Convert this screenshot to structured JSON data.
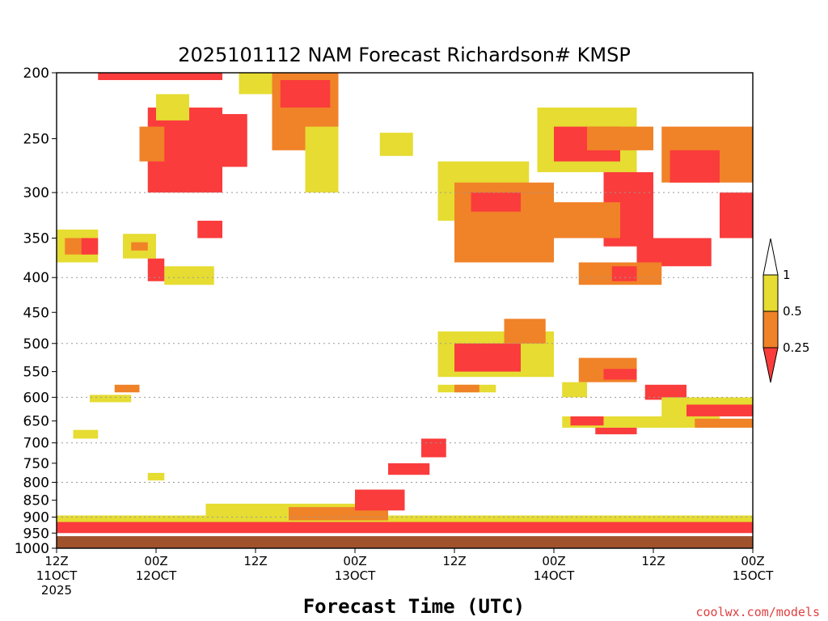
{
  "chart_data": {
    "type": "heatmap",
    "title": "2025101112 NAM Forecast Richardson# KMSP",
    "xlabel": "Forecast Time (UTC)",
    "ylabel": "",
    "credit": "coolwx.com/models",
    "y_scale": "log-pressure (inverted)",
    "ylim": [
      1000,
      200
    ],
    "xlim": [
      0,
      84
    ],
    "y_ticks": [
      200,
      250,
      300,
      350,
      400,
      450,
      500,
      550,
      600,
      650,
      700,
      750,
      800,
      850,
      900,
      950,
      1000
    ],
    "gridlines": [
      300,
      400,
      500,
      600,
      700,
      800,
      900
    ],
    "x_ticks": [
      {
        "hour": 0,
        "line1": "12Z",
        "line2": "11OCT",
        "line3": "2025"
      },
      {
        "hour": 12,
        "line1": "00Z",
        "line2": "12OCT",
        "line3": ""
      },
      {
        "hour": 24,
        "line1": "12Z",
        "line2": "",
        "line3": ""
      },
      {
        "hour": 36,
        "line1": "00Z",
        "line2": "13OCT",
        "line3": ""
      },
      {
        "hour": 48,
        "line1": "12Z",
        "line2": "",
        "line3": ""
      },
      {
        "hour": 60,
        "line1": "00Z",
        "line2": "14OCT",
        "line3": ""
      },
      {
        "hour": 72,
        "line1": "12Z",
        "line2": "",
        "line3": ""
      },
      {
        "hour": 84,
        "line1": "00Z",
        "line2": "15OCT",
        "line3": ""
      }
    ],
    "legend": {
      "position": "right",
      "levels": [
        {
          "label": "1",
          "range": "> 1",
          "color": "#ffffff"
        },
        {
          "label": "0.5",
          "range": "0.5 - 1",
          "color": "#e6dc32"
        },
        {
          "label": "0.25",
          "range": "0.25 - 0.5",
          "color": "#f08228"
        },
        {
          "label": "",
          "range": "< 0.25",
          "color": "#fa3c3c"
        }
      ]
    },
    "colors": {
      "yellow": "#e6dc32",
      "orange": "#f08228",
      "red": "#fa3c3c",
      "ground": "#a0522d"
    },
    "regions": [
      {
        "h0": 0,
        "h1": 84,
        "p0": 960,
        "p1": 1000,
        "c": "ground"
      },
      {
        "h0": 0,
        "h1": 84,
        "p0": 910,
        "p1": 950,
        "c": "red"
      },
      {
        "h0": 0,
        "h1": 84,
        "p0": 895,
        "p1": 915,
        "c": "yellow"
      },
      {
        "h0": 18,
        "h1": 40,
        "p0": 860,
        "p1": 900,
        "c": "yellow"
      },
      {
        "h0": 28,
        "h1": 40,
        "p0": 870,
        "p1": 910,
        "c": "orange"
      },
      {
        "h0": 36,
        "h1": 42,
        "p0": 820,
        "p1": 880,
        "c": "red"
      },
      {
        "h0": 44,
        "h1": 47,
        "p0": 690,
        "p1": 735,
        "c": "red"
      },
      {
        "h0": 40,
        "h1": 45,
        "p0": 750,
        "p1": 780,
        "c": "red"
      },
      {
        "h0": 5,
        "h1": 20,
        "p0": 200,
        "p1": 205,
        "c": "red"
      },
      {
        "h0": 11,
        "h1": 20,
        "p0": 225,
        "p1": 300,
        "c": "red"
      },
      {
        "h0": 10,
        "h1": 13,
        "p0": 240,
        "p1": 270,
        "c": "orange"
      },
      {
        "h0": 16,
        "h1": 23,
        "p0": 230,
        "p1": 275,
        "c": "red"
      },
      {
        "h0": 12,
        "h1": 16,
        "p0": 215,
        "p1": 235,
        "c": "yellow"
      },
      {
        "h0": 22,
        "h1": 26,
        "p0": 200,
        "p1": 215,
        "c": "yellow"
      },
      {
        "h0": 26,
        "h1": 34,
        "p0": 200,
        "p1": 260,
        "c": "orange"
      },
      {
        "h0": 27,
        "h1": 33,
        "p0": 205,
        "p1": 225,
        "c": "red"
      },
      {
        "h0": 30,
        "h1": 34,
        "p0": 240,
        "p1": 300,
        "c": "yellow"
      },
      {
        "h0": 17,
        "h1": 20,
        "p0": 330,
        "p1": 350,
        "c": "red"
      },
      {
        "h0": 13,
        "h1": 19,
        "p0": 385,
        "p1": 410,
        "c": "yellow"
      },
      {
        "h0": 11,
        "h1": 13,
        "p0": 375,
        "p1": 405,
        "c": "red"
      },
      {
        "h0": 8,
        "h1": 12,
        "p0": 345,
        "p1": 375,
        "c": "yellow"
      },
      {
        "h0": 9,
        "h1": 11,
        "p0": 355,
        "p1": 365,
        "c": "orange"
      },
      {
        "h0": 0,
        "h1": 5,
        "p0": 340,
        "p1": 380,
        "c": "yellow"
      },
      {
        "h0": 1,
        "h1": 4,
        "p0": 350,
        "p1": 370,
        "c": "orange"
      },
      {
        "h0": 3,
        "h1": 5,
        "p0": 350,
        "p1": 370,
        "c": "red"
      },
      {
        "h0": 39,
        "h1": 43,
        "p0": 245,
        "p1": 265,
        "c": "yellow"
      },
      {
        "h0": 46,
        "h1": 57,
        "p0": 270,
        "p1": 330,
        "c": "yellow"
      },
      {
        "h0": 48,
        "h1": 60,
        "p0": 290,
        "p1": 380,
        "c": "orange"
      },
      {
        "h0": 50,
        "h1": 56,
        "p0": 300,
        "p1": 320,
        "c": "red"
      },
      {
        "h0": 58,
        "h1": 70,
        "p0": 225,
        "p1": 280,
        "c": "yellow"
      },
      {
        "h0": 60,
        "h1": 68,
        "p0": 240,
        "p1": 270,
        "c": "red"
      },
      {
        "h0": 64,
        "h1": 72,
        "p0": 240,
        "p1": 260,
        "c": "orange"
      },
      {
        "h0": 66,
        "h1": 72,
        "p0": 280,
        "p1": 360,
        "c": "red"
      },
      {
        "h0": 60,
        "h1": 68,
        "p0": 310,
        "p1": 350,
        "c": "orange"
      },
      {
        "h0": 73,
        "h1": 84,
        "p0": 240,
        "p1": 290,
        "c": "orange"
      },
      {
        "h0": 74,
        "h1": 80,
        "p0": 260,
        "p1": 290,
        "c": "red"
      },
      {
        "h0": 80,
        "h1": 84,
        "p0": 300,
        "p1": 350,
        "c": "red"
      },
      {
        "h0": 70,
        "h1": 79,
        "p0": 350,
        "p1": 385,
        "c": "red"
      },
      {
        "h0": 63,
        "h1": 73,
        "p0": 380,
        "p1": 410,
        "c": "orange"
      },
      {
        "h0": 67,
        "h1": 70,
        "p0": 385,
        "p1": 405,
        "c": "red"
      },
      {
        "h0": 46,
        "h1": 60,
        "p0": 480,
        "p1": 560,
        "c": "yellow"
      },
      {
        "h0": 48,
        "h1": 56,
        "p0": 500,
        "p1": 550,
        "c": "red"
      },
      {
        "h0": 54,
        "h1": 59,
        "p0": 460,
        "p1": 500,
        "c": "orange"
      },
      {
        "h0": 46,
        "h1": 53,
        "p0": 575,
        "p1": 590,
        "c": "yellow"
      },
      {
        "h0": 48,
        "h1": 51,
        "p0": 575,
        "p1": 590,
        "c": "orange"
      },
      {
        "h0": 63,
        "h1": 70,
        "p0": 525,
        "p1": 570,
        "c": "orange"
      },
      {
        "h0": 66,
        "h1": 70,
        "p0": 545,
        "p1": 565,
        "c": "red"
      },
      {
        "h0": 61,
        "h1": 64,
        "p0": 570,
        "p1": 600,
        "c": "yellow"
      },
      {
        "h0": 71,
        "h1": 76,
        "p0": 575,
        "p1": 605,
        "c": "red"
      },
      {
        "h0": 73,
        "h1": 84,
        "p0": 600,
        "p1": 640,
        "c": "yellow"
      },
      {
        "h0": 76,
        "h1": 84,
        "p0": 615,
        "p1": 640,
        "c": "red"
      },
      {
        "h0": 61,
        "h1": 80,
        "p0": 640,
        "p1": 665,
        "c": "yellow"
      },
      {
        "h0": 62,
        "h1": 66,
        "p0": 640,
        "p1": 660,
        "c": "red"
      },
      {
        "h0": 77,
        "h1": 84,
        "p0": 645,
        "p1": 665,
        "c": "orange"
      },
      {
        "h0": 65,
        "h1": 70,
        "p0": 665,
        "p1": 680,
        "c": "red"
      },
      {
        "h0": 4,
        "h1": 9,
        "p0": 595,
        "p1": 610,
        "c": "yellow"
      },
      {
        "h0": 7,
        "h1": 10,
        "p0": 575,
        "p1": 590,
        "c": "orange"
      },
      {
        "h0": 11,
        "h1": 13,
        "p0": 775,
        "p1": 795,
        "c": "yellow"
      },
      {
        "h0": 2,
        "h1": 5,
        "p0": 670,
        "p1": 690,
        "c": "yellow"
      }
    ]
  }
}
